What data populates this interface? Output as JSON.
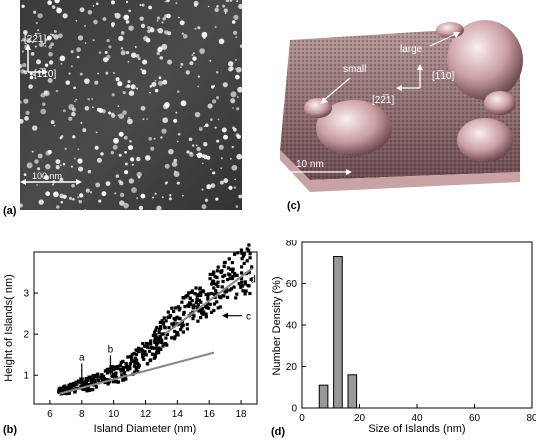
{
  "panels": {
    "a": {
      "label": "(a)",
      "direction_1": "[22̅1]",
      "direction_2": "[1̅10]",
      "scale_bar": "100 nm"
    },
    "c": {
      "label": "(c)",
      "large_label": "large",
      "small_label": "small",
      "direction_1": "[1̅10]",
      "direction_2": "[22̅1]",
      "scale_bar": "10 nm"
    },
    "b": {
      "label": "(b)",
      "arrow_labels": [
        "a",
        "b",
        "c",
        "d"
      ]
    },
    "d": {
      "label": "(d)"
    }
  },
  "chart_data": [
    {
      "id": "b",
      "type": "scatter",
      "xlabel": "Island Diameter (nm)",
      "ylabel": "Height of Islands( nm)",
      "xlim": [
        5,
        19
      ],
      "ylim": [
        0.3,
        4.0
      ],
      "xticks": [
        6,
        8,
        10,
        12,
        14,
        16,
        18
      ],
      "yticks": [
        1,
        2,
        3
      ],
      "marker": "filled-square",
      "cluster_summary": [
        {
          "x": 6.5,
          "y": 0.6
        },
        {
          "x": 7.5,
          "y": 0.7
        },
        {
          "x": 8.5,
          "y": 0.8
        },
        {
          "x": 9.5,
          "y": 0.95
        },
        {
          "x": 10.5,
          "y": 1.1
        },
        {
          "x": 11.5,
          "y": 1.35
        },
        {
          "x": 12.5,
          "y": 1.7
        },
        {
          "x": 13.5,
          "y": 2.2
        },
        {
          "x": 14.5,
          "y": 2.5
        },
        {
          "x": 15.5,
          "y": 2.8
        },
        {
          "x": 16.5,
          "y": 3.1
        },
        {
          "x": 17.5,
          "y": 3.35
        },
        {
          "x": 18.5,
          "y": 3.6
        }
      ],
      "fit_lines": [
        {
          "x": [
            6.6,
            16.3
          ],
          "y": [
            0.55,
            1.55
          ]
        },
        {
          "x": [
            13.2,
            18.7
          ],
          "y": [
            2.0,
            3.6
          ]
        }
      ],
      "annotations": [
        {
          "text": "a",
          "x": 8.0,
          "y": 0.75
        },
        {
          "text": "b",
          "x": 9.8,
          "y": 0.95
        },
        {
          "text": "c",
          "x": 16.8,
          "y": 2.45
        },
        {
          "text": "d",
          "x": 18.7,
          "y": 3.35
        }
      ]
    },
    {
      "id": "d",
      "type": "bar",
      "xlabel": "Size of Islands (nm)",
      "ylabel": "Number  Density (%)",
      "xlim": [
        0,
        80
      ],
      "ylim": [
        0,
        80
      ],
      "xticks": [
        0,
        20,
        40,
        60,
        80
      ],
      "yticks": [
        0,
        20,
        40,
        60,
        80
      ],
      "bars": [
        {
          "center": 7.5,
          "width": 3,
          "value": 11
        },
        {
          "center": 12.5,
          "width": 3,
          "value": 73
        },
        {
          "center": 17.5,
          "width": 3,
          "value": 16
        }
      ],
      "colors": {
        "bar": "#999999"
      }
    }
  ]
}
